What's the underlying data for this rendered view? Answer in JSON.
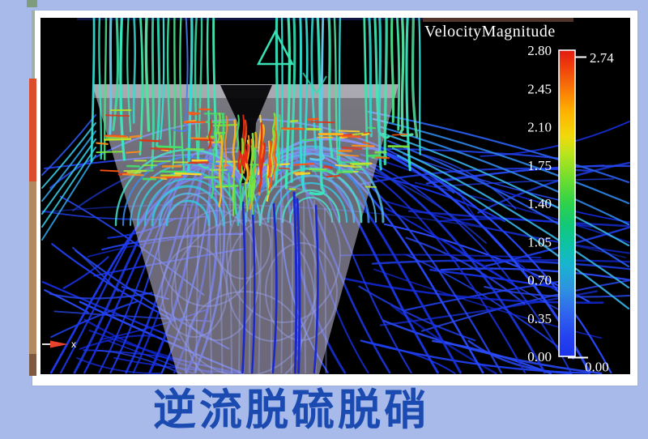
{
  "caption": {
    "title": "逆流脱硫脱硝"
  },
  "legend": {
    "title": "VelocityMagnitude",
    "ticks": [
      "2.80",
      "2.45",
      "2.10",
      "1.75",
      "1.40",
      "1.05",
      "0.70",
      "0.35",
      "0.00"
    ],
    "max_label": "2.74",
    "min_label": "0.00"
  },
  "axis_indicator": {
    "x_label": "x"
  },
  "colors": {
    "background": "#a7bae9",
    "frame": "#ffffff",
    "canvas": "#000000",
    "caption_text": "#1b4ab0",
    "colorbar_top": "#e31a12",
    "colorbar_bottom": "#1c33ea"
  },
  "chart_data": {
    "type": "streamline-flow-visualization",
    "title": "VelocityMagnitude",
    "caption": "逆流脱硫脱硝",
    "colorbar": {
      "orientation": "vertical",
      "position": "right",
      "min": 0.0,
      "max": 2.8,
      "tick_values": [
        2.8,
        2.45,
        2.1,
        1.75,
        1.4,
        1.05,
        0.7,
        0.35,
        0.0
      ],
      "data_max_marker": 2.74,
      "data_min_marker": 0.0,
      "colormap": "rainbow (red = high velocity, blue = low velocity)"
    },
    "content_summary": "Velocity-magnitude streamlines: green/teal jets descend from the top into a translucent gray inverted-funnel vessel with a dark central nozzle notch; high-velocity yellow/orange/red filaments at the nozzle exit; blue low-velocity streamlines arc outward and criss-cross the lower left/right regions; x-axis arrow marker at bottom-left."
  }
}
